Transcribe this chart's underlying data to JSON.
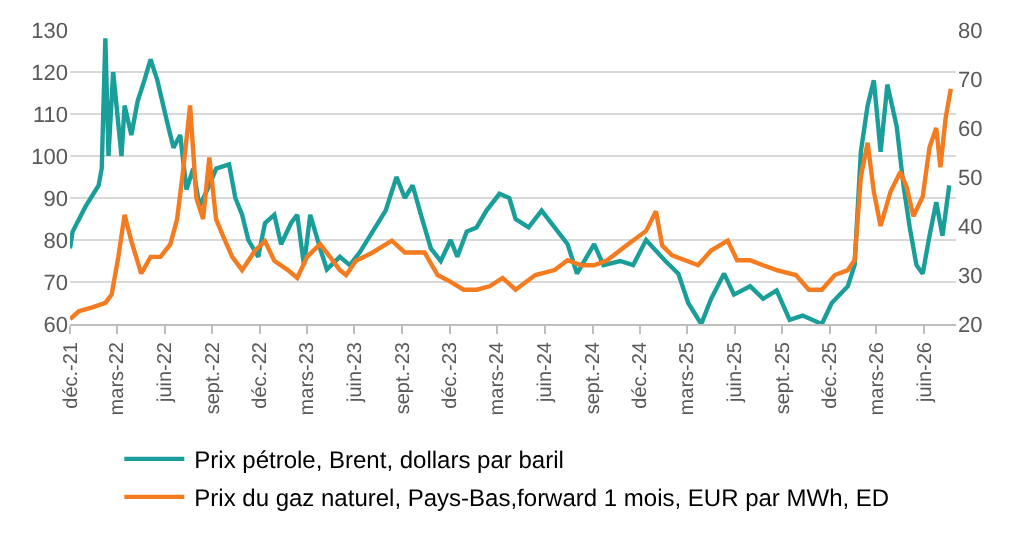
{
  "chart_data": {
    "type": "line",
    "xlim": [
      "2021-12-01",
      "2026-08-01"
    ],
    "xticks": [
      {
        "value": "2021-12-01",
        "label": "déc.-21"
      },
      {
        "value": "2022-03-01",
        "label": "mars-22"
      },
      {
        "value": "2022-06-01",
        "label": "juin-22"
      },
      {
        "value": "2022-09-01",
        "label": "sept.-22"
      },
      {
        "value": "2022-12-01",
        "label": "déc.-22"
      },
      {
        "value": "2023-03-01",
        "label": "mars-23"
      },
      {
        "value": "2023-06-01",
        "label": "juin-23"
      },
      {
        "value": "2023-09-01",
        "label": "sept.-23"
      },
      {
        "value": "2023-12-01",
        "label": "déc.-23"
      },
      {
        "value": "2024-03-01",
        "label": "mars-24"
      },
      {
        "value": "2024-06-01",
        "label": "juin-24"
      },
      {
        "value": "2024-09-01",
        "label": "sept.-24"
      },
      {
        "value": "2024-12-01",
        "label": "déc.-24"
      },
      {
        "value": "2025-03-01",
        "label": "mars-25"
      },
      {
        "value": "2025-06-01",
        "label": "juin-25"
      },
      {
        "value": "2025-09-01",
        "label": "sept.-25"
      },
      {
        "value": "2025-12-01",
        "label": "déc.-25"
      },
      {
        "value": "2026-03-01",
        "label": "mars-26"
      },
      {
        "value": "2026-06-01",
        "label": "juin-26"
      }
    ],
    "ylim": [
      60,
      130
    ],
    "yticks": [
      60,
      70,
      80,
      90,
      100,
      110,
      120,
      130
    ],
    "y2lim": [
      20,
      80
    ],
    "y2ticks": [
      20,
      30,
      40,
      50,
      60,
      70,
      80
    ],
    "grid": "y",
    "legend": "bottom",
    "marker": "none",
    "line_style": "solid",
    "series": [
      {
        "name": "Prix pétrole, Brent, dollars par baril",
        "color": "#1a9e9a",
        "x": [
          "2021-12-01",
          "2021-12-06",
          "2021-12-31",
          "2022-01-25",
          "2022-01-31",
          "2022-02-07",
          "2022-02-13",
          "2022-02-22",
          "2022-03-10",
          "2022-03-16",
          "2022-03-29",
          "2022-04-10",
          "2022-04-23",
          "2022-05-05",
          "2022-05-18",
          "2022-06-06",
          "2022-06-18",
          "2022-07-01",
          "2022-07-13",
          "2022-07-26",
          "2022-08-07",
          "2022-08-26",
          "2022-09-08",
          "2022-10-03",
          "2022-10-15",
          "2022-10-28",
          "2022-11-09",
          "2022-11-28",
          "2022-12-11",
          "2022-12-29",
          "2023-01-11",
          "2023-01-30",
          "2023-02-11",
          "2023-02-24",
          "2023-03-08",
          "2023-03-27",
          "2023-04-09",
          "2023-05-04",
          "2023-05-23",
          "2023-06-11",
          "2023-07-06",
          "2023-07-31",
          "2023-08-21",
          "2023-09-06",
          "2023-09-21",
          "2023-10-07",
          "2023-10-26",
          "2023-11-14",
          "2023-12-03",
          "2023-12-16",
          "2024-01-03",
          "2024-01-22",
          "2024-02-10",
          "2024-03-06",
          "2024-03-25",
          "2024-04-06",
          "2024-05-01",
          "2024-05-26",
          "2024-06-20",
          "2024-07-15",
          "2024-08-02",
          "2024-09-04",
          "2024-09-22",
          "2024-10-24",
          "2024-11-18",
          "2024-12-13",
          "2025-01-19",
          "2025-02-13",
          "2025-03-04",
          "2025-03-29",
          "2025-04-17",
          "2025-05-12",
          "2025-05-31",
          "2025-07-01",
          "2025-07-26",
          "2025-08-21",
          "2025-09-15",
          "2025-10-10",
          "2025-11-16",
          "2025-12-05",
          "2026-01-05",
          "2026-01-18",
          "2026-01-30",
          "2026-02-12",
          "2026-02-24",
          "2026-03-09",
          "2026-03-22",
          "2026-04-09",
          "2026-04-22",
          "2026-05-04",
          "2026-05-17",
          "2026-05-29",
          "2026-06-11",
          "2026-06-24",
          "2026-07-06",
          "2026-07-19"
        ],
        "values": [
          78,
          82,
          88,
          93,
          97,
          128,
          100,
          120,
          100,
          112,
          105,
          113,
          118,
          123,
          118,
          108,
          102,
          105,
          92,
          97,
          88,
          93,
          97,
          98,
          90,
          86,
          80,
          76,
          84,
          86,
          79,
          84,
          86,
          74,
          86,
          78,
          73,
          76,
          74,
          77,
          82,
          87,
          95,
          90,
          93,
          86,
          78,
          75,
          80,
          76,
          82,
          83,
          87,
          91,
          90,
          85,
          83,
          87,
          83,
          79,
          72,
          79,
          74,
          75,
          74,
          80,
          75,
          72,
          65,
          60,
          66,
          72,
          67,
          69,
          66,
          68,
          61,
          62,
          60,
          65,
          69,
          74,
          101,
          112,
          118,
          101,
          117,
          107,
          93,
          83,
          74,
          72,
          81,
          89,
          81,
          93
        ]
      },
      {
        "name": "Prix du gaz naturel, Pays-Bas,forward 1 mois, EUR par MWh, ED",
        "color": "#f47b20",
        "axis": "y2",
        "x": [
          "2021-12-01",
          "2021-12-18",
          "2022-01-13",
          "2022-02-07",
          "2022-02-19",
          "2022-03-04",
          "2022-03-16",
          "2022-03-29",
          "2022-04-17",
          "2022-05-05",
          "2022-05-24",
          "2022-06-12",
          "2022-06-25",
          "2022-07-07",
          "2022-07-20",
          "2022-08-01",
          "2022-08-14",
          "2022-08-26",
          "2022-09-08",
          "2022-09-20",
          "2022-10-09",
          "2022-10-28",
          "2022-11-22",
          "2022-12-11",
          "2022-12-29",
          "2023-01-24",
          "2023-02-11",
          "2023-03-02",
          "2023-03-27",
          "2023-04-15",
          "2023-05-04",
          "2023-05-16",
          "2023-06-04",
          "2023-07-06",
          "2023-08-12",
          "2023-09-06",
          "2023-10-14",
          "2023-11-08",
          "2023-12-03",
          "2023-12-28",
          "2024-01-22",
          "2024-02-16",
          "2024-03-12",
          "2024-04-06",
          "2024-05-14",
          "2024-06-20",
          "2024-07-15",
          "2024-08-10",
          "2024-09-04",
          "2024-09-29",
          "2024-11-05",
          "2024-12-13",
          "2025-01-01",
          "2025-01-13",
          "2025-02-01",
          "2025-02-26",
          "2025-03-23",
          "2025-04-17",
          "2025-05-19",
          "2025-06-06",
          "2025-07-01",
          "2025-07-26",
          "2025-08-21",
          "2025-09-27",
          "2025-10-22",
          "2025-11-16",
          "2025-12-11",
          "2026-01-05",
          "2026-01-18",
          "2026-01-30",
          "2026-02-12",
          "2026-02-24",
          "2026-03-09",
          "2026-03-28",
          "2026-04-16",
          "2026-04-28",
          "2026-05-11",
          "2026-05-29",
          "2026-06-11",
          "2026-06-24",
          "2026-07-02",
          "2026-07-12",
          "2026-07-22"
        ],
        "values": [
          21,
          22.6,
          23.4,
          24.3,
          26,
          33.7,
          42.3,
          36.9,
          30.3,
          33.7,
          33.7,
          36.3,
          41.4,
          51.7,
          64.6,
          45.7,
          41.4,
          54,
          41.4,
          38.3,
          33.7,
          31,
          35,
          36.9,
          32.9,
          31,
          29.4,
          33.7,
          36.3,
          33.7,
          31,
          30,
          32.9,
          34.6,
          37,
          34.6,
          34.6,
          30,
          28.6,
          27,
          27,
          27.7,
          29.4,
          27,
          30,
          31,
          33,
          32,
          32,
          33,
          36,
          39,
          43,
          36,
          34,
          33,
          32,
          35,
          37,
          33,
          33,
          32,
          31,
          30,
          27,
          27,
          30,
          31,
          33,
          50,
          57,
          47,
          40,
          47,
          51,
          48,
          42,
          46,
          56,
          60,
          52,
          62,
          68
        ]
      }
    ]
  }
}
